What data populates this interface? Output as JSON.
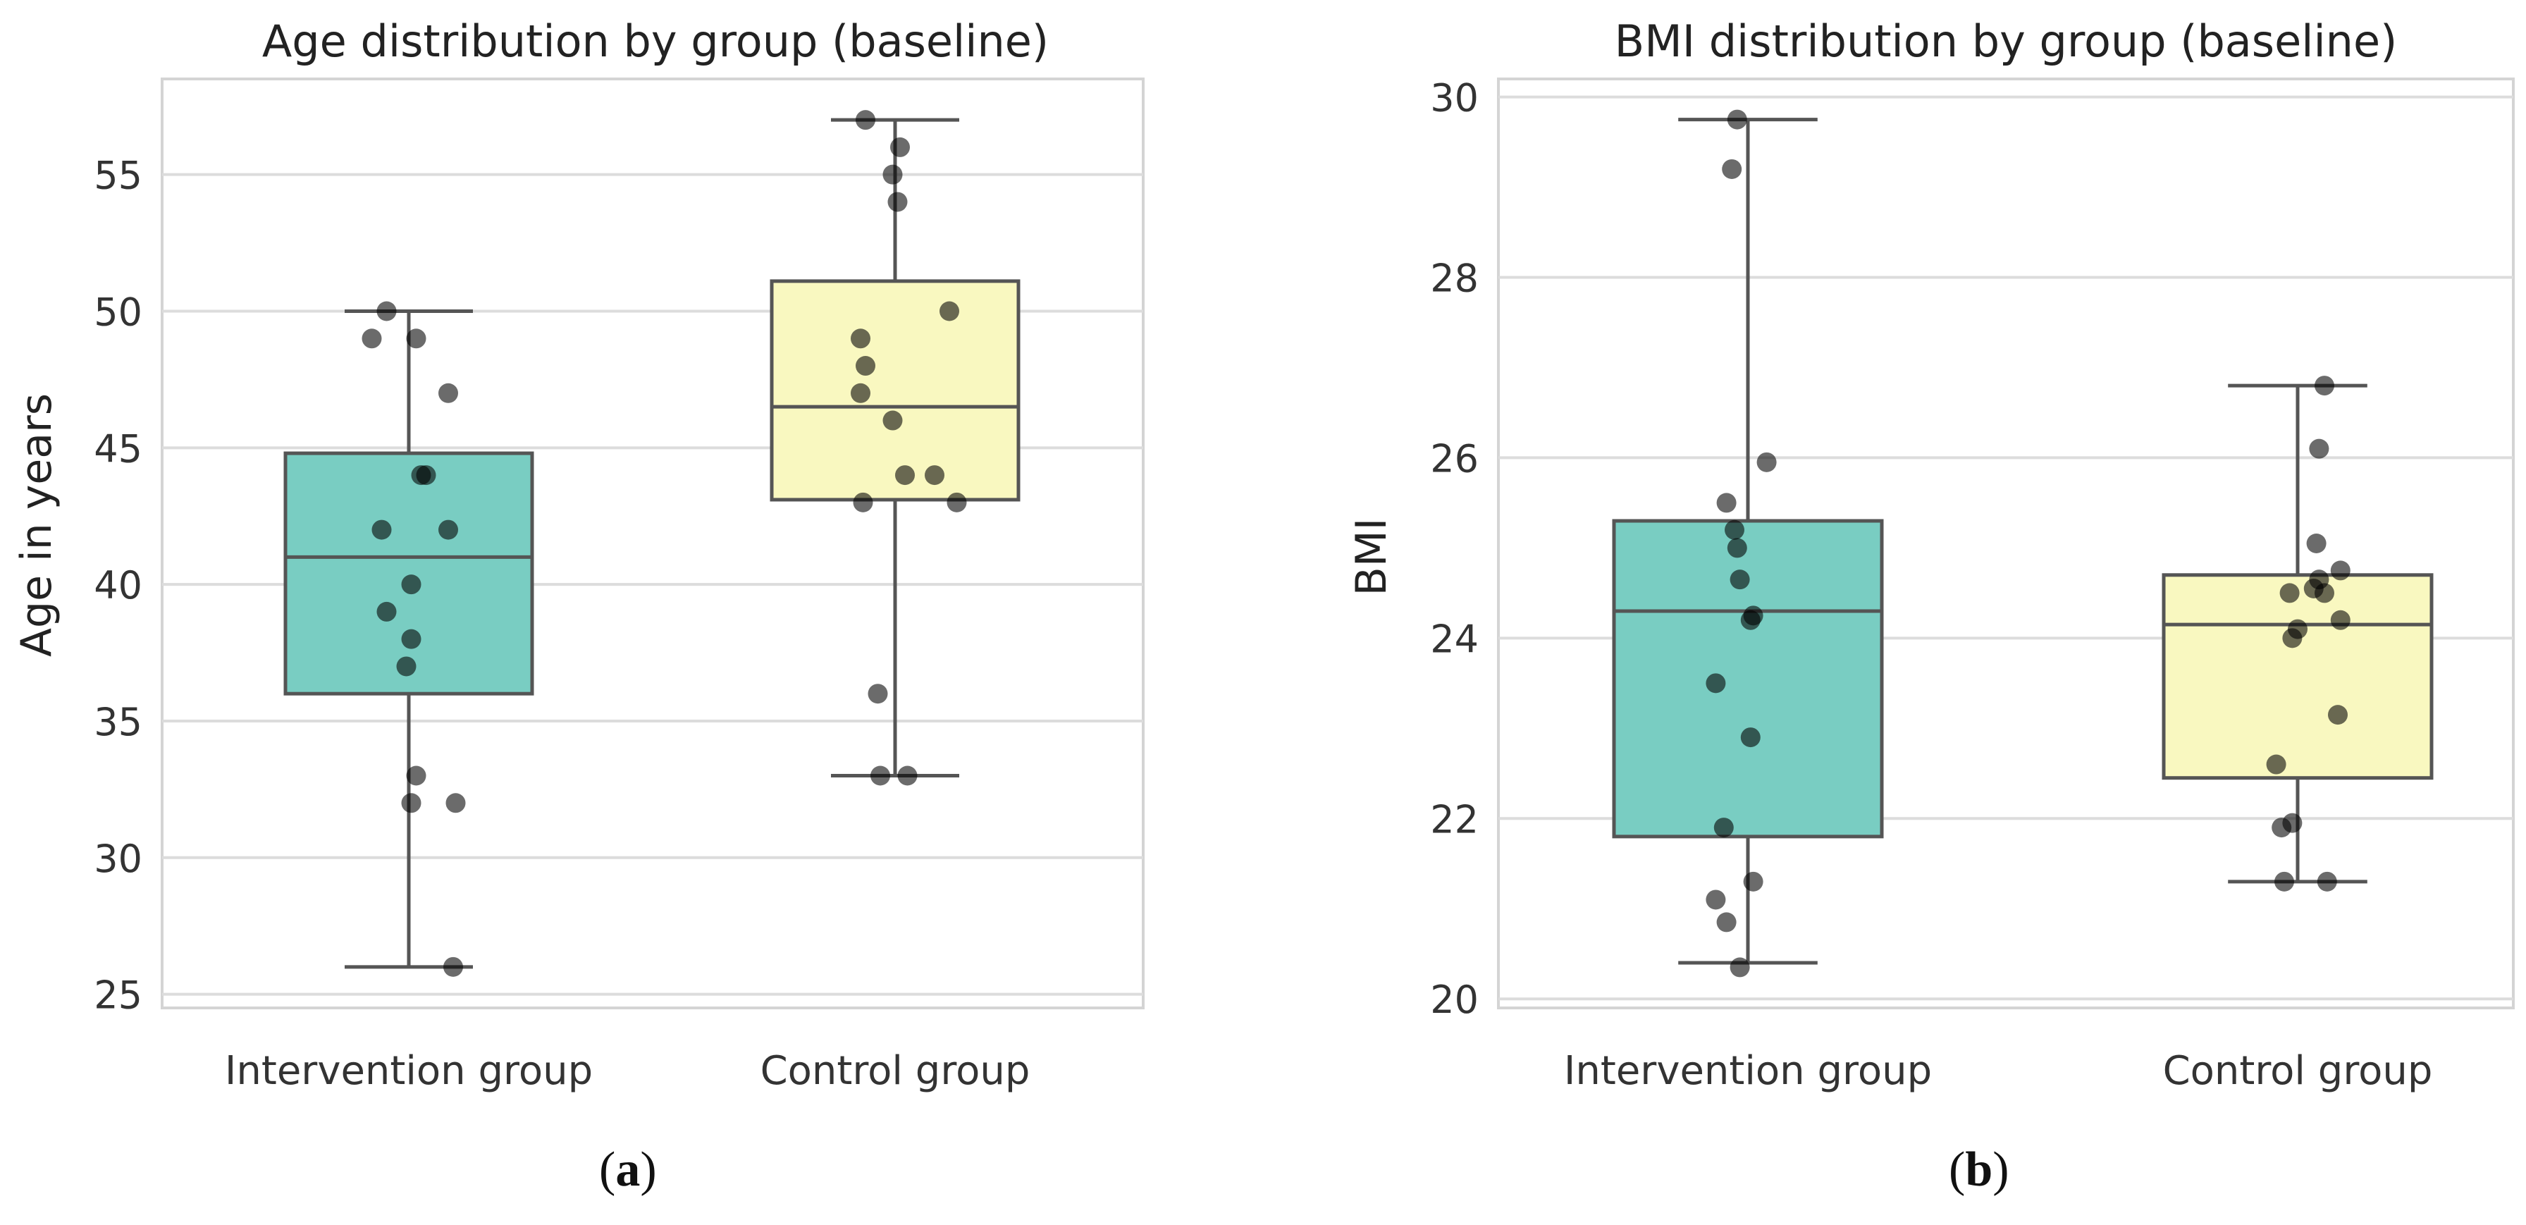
{
  "chart_data": [
    {
      "type": "box",
      "title": "Age distribution by group (baseline)",
      "xlabel": "",
      "ylabel": "Age in years",
      "ylim": [
        24.5,
        58.5
      ],
      "yticks": [
        25,
        30,
        35,
        40,
        45,
        50,
        55
      ],
      "grid": true,
      "legend": "none",
      "categories": [
        "Intervention group",
        "Control group"
      ],
      "boxes": [
        {
          "name": "Intervention group",
          "color": "#79cdc2",
          "whisker_low": 26,
          "q1": 36,
          "median": 41,
          "q3": 44.8,
          "whisker_high": 50
        },
        {
          "name": "Control group",
          "color": "#f9f8c0",
          "whisker_low": 33,
          "q1": 43.1,
          "median": 46.5,
          "q3": 51.1,
          "whisker_high": 57
        }
      ],
      "points": [
        {
          "group": 0,
          "jitter": -0.15,
          "y": 49
        },
        {
          "group": 0,
          "jitter": -0.09,
          "y": 50
        },
        {
          "group": 0,
          "jitter": 0.03,
          "y": 49
        },
        {
          "group": 0,
          "jitter": 0.16,
          "y": 47
        },
        {
          "group": 0,
          "jitter": 0.05,
          "y": 44
        },
        {
          "group": 0,
          "jitter": 0.07,
          "y": 44
        },
        {
          "group": 0,
          "jitter": -0.11,
          "y": 42
        },
        {
          "group": 0,
          "jitter": 0.16,
          "y": 42
        },
        {
          "group": 0,
          "jitter": 0.01,
          "y": 40
        },
        {
          "group": 0,
          "jitter": -0.09,
          "y": 39
        },
        {
          "group": 0,
          "jitter": 0.01,
          "y": 38
        },
        {
          "group": 0,
          "jitter": -0.01,
          "y": 37
        },
        {
          "group": 0,
          "jitter": 0.03,
          "y": 33
        },
        {
          "group": 0,
          "jitter": 0.01,
          "y": 32
        },
        {
          "group": 0,
          "jitter": 0.19,
          "y": 32
        },
        {
          "group": 0,
          "jitter": 0.18,
          "y": 26
        },
        {
          "group": 1,
          "jitter": -0.12,
          "y": 57
        },
        {
          "group": 1,
          "jitter": 0.02,
          "y": 56
        },
        {
          "group": 1,
          "jitter": -0.01,
          "y": 55
        },
        {
          "group": 1,
          "jitter": 0.01,
          "y": 54
        },
        {
          "group": 1,
          "jitter": 0.22,
          "y": 50
        },
        {
          "group": 1,
          "jitter": -0.14,
          "y": 49
        },
        {
          "group": 1,
          "jitter": -0.12,
          "y": 48
        },
        {
          "group": 1,
          "jitter": -0.14,
          "y": 47
        },
        {
          "group": 1,
          "jitter": -0.01,
          "y": 46
        },
        {
          "group": 1,
          "jitter": 0.04,
          "y": 44
        },
        {
          "group": 1,
          "jitter": 0.16,
          "y": 44
        },
        {
          "group": 1,
          "jitter": -0.13,
          "y": 43
        },
        {
          "group": 1,
          "jitter": 0.25,
          "y": 43
        },
        {
          "group": 1,
          "jitter": -0.07,
          "y": 36
        },
        {
          "group": 1,
          "jitter": -0.06,
          "y": 33
        },
        {
          "group": 1,
          "jitter": 0.05,
          "y": 33
        }
      ]
    },
    {
      "type": "box",
      "title": "BMI distribution by group (baseline)",
      "xlabel": "",
      "ylabel": "BMI",
      "ylim": [
        19.9,
        30.2
      ],
      "yticks": [
        20,
        22,
        24,
        26,
        28,
        30
      ],
      "grid": true,
      "legend": "none",
      "categories": [
        "Intervention group",
        "Control group"
      ],
      "boxes": [
        {
          "name": "Intervention group",
          "color": "#79cdc2",
          "whisker_low": 20.4,
          "q1": 21.8,
          "median": 24.3,
          "q3": 25.3,
          "whisker_high": 29.75
        },
        {
          "name": "Control group",
          "color": "#f9f8c0",
          "whisker_low": 21.3,
          "q1": 22.45,
          "median": 24.15,
          "q3": 24.7,
          "whisker_high": 26.8
        }
      ],
      "points": [
        {
          "group": 0,
          "jitter": -0.04,
          "y": 29.75
        },
        {
          "group": 0,
          "jitter": -0.06,
          "y": 29.2
        },
        {
          "group": 0,
          "jitter": 0.07,
          "y": 25.95
        },
        {
          "group": 0,
          "jitter": -0.08,
          "y": 25.5
        },
        {
          "group": 0,
          "jitter": -0.05,
          "y": 25.2
        },
        {
          "group": 0,
          "jitter": -0.04,
          "y": 25.0
        },
        {
          "group": 0,
          "jitter": -0.03,
          "y": 24.65
        },
        {
          "group": 0,
          "jitter": 0.02,
          "y": 24.25
        },
        {
          "group": 0,
          "jitter": 0.01,
          "y": 24.2
        },
        {
          "group": 0,
          "jitter": -0.12,
          "y": 23.5
        },
        {
          "group": 0,
          "jitter": 0.01,
          "y": 22.9
        },
        {
          "group": 0,
          "jitter": -0.09,
          "y": 21.9
        },
        {
          "group": 0,
          "jitter": 0.02,
          "y": 21.3
        },
        {
          "group": 0,
          "jitter": -0.12,
          "y": 21.1
        },
        {
          "group": 0,
          "jitter": -0.08,
          "y": 20.85
        },
        {
          "group": 0,
          "jitter": -0.03,
          "y": 20.35
        },
        {
          "group": 1,
          "jitter": 0.1,
          "y": 26.8
        },
        {
          "group": 1,
          "jitter": 0.08,
          "y": 26.1
        },
        {
          "group": 1,
          "jitter": 0.07,
          "y": 25.05
        },
        {
          "group": 1,
          "jitter": 0.16,
          "y": 24.75
        },
        {
          "group": 1,
          "jitter": 0.08,
          "y": 24.65
        },
        {
          "group": 1,
          "jitter": 0.06,
          "y": 24.55
        },
        {
          "group": 1,
          "jitter": -0.03,
          "y": 24.5
        },
        {
          "group": 1,
          "jitter": 0.1,
          "y": 24.5
        },
        {
          "group": 1,
          "jitter": 0.0,
          "y": 24.1
        },
        {
          "group": 1,
          "jitter": 0.16,
          "y": 24.2
        },
        {
          "group": 1,
          "jitter": -0.02,
          "y": 24.0
        },
        {
          "group": 1,
          "jitter": 0.15,
          "y": 23.15
        },
        {
          "group": 1,
          "jitter": -0.08,
          "y": 22.6
        },
        {
          "group": 1,
          "jitter": -0.06,
          "y": 21.9
        },
        {
          "group": 1,
          "jitter": -0.02,
          "y": 21.95
        },
        {
          "group": 1,
          "jitter": -0.05,
          "y": 21.3
        },
        {
          "group": 1,
          "jitter": 0.11,
          "y": 21.3
        }
      ]
    }
  ],
  "captions": {
    "a": {
      "open": "(",
      "letter": "a",
      "close": ")"
    },
    "b": {
      "open": "(",
      "letter": "b",
      "close": ")"
    }
  }
}
